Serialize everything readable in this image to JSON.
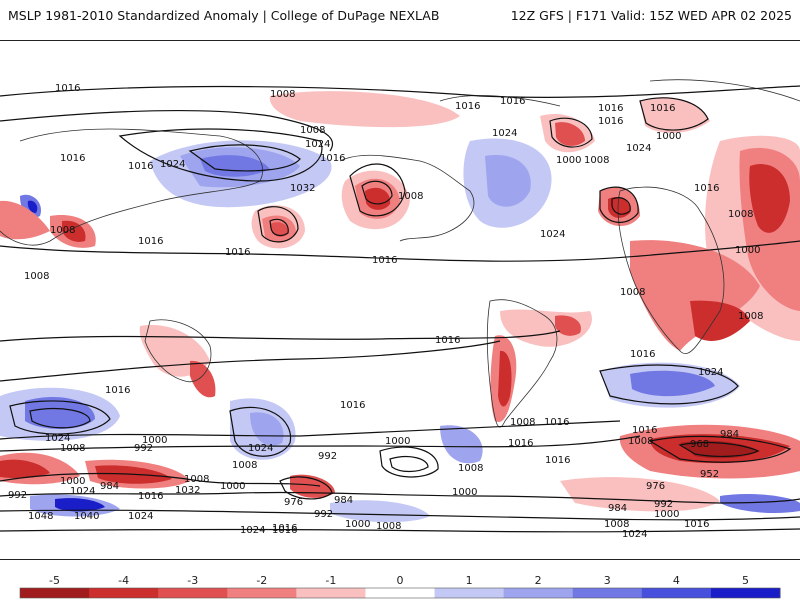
{
  "header": {
    "left_title": "MSLP 1981-2010 Standardized Anomaly | College of DuPage NEXLAB",
    "right_title": "12Z GFS | F171 Valid: 15Z WED APR 02 2025"
  },
  "colorbar": {
    "ticks": [
      "-5",
      "-4",
      "-3",
      "-2",
      "-1",
      "0",
      "1",
      "2",
      "3",
      "4",
      "5"
    ],
    "colors": [
      "#a11d1d",
      "#cc2e2e",
      "#e05050",
      "#f08080",
      "#fac0c0",
      "#ffffff",
      "#c4c8f4",
      "#9ea5ee",
      "#7178e4",
      "#4650dc",
      "#1a1ec8"
    ]
  },
  "isobar_labels": [
    "1016",
    "1008",
    "1016",
    "1016",
    "1024",
    "1016",
    "1032",
    "1016",
    "1016",
    "1008",
    "1016",
    "1008",
    "1016",
    "1024",
    "1016",
    "1008",
    "1024",
    "1000",
    "1008",
    "1016",
    "1016",
    "1000",
    "1008",
    "1024",
    "1016",
    "1024",
    "1016",
    "1016",
    "1008",
    "1016",
    "1008",
    "1016",
    "1000",
    "1008",
    "1000",
    "1024",
    "1008",
    "1024",
    "1016",
    "1008",
    "1016",
    "1016",
    "1024",
    "1000",
    "992",
    "1016",
    "1008",
    "1016",
    "1000",
    "1008",
    "1008",
    "992",
    "1024",
    "1008",
    "992",
    "1040",
    "1000",
    "1048",
    "984",
    "1016",
    "1000",
    "1032",
    "1024",
    "976",
    "984",
    "992",
    "1008",
    "1016",
    "968",
    "984",
    "952",
    "976",
    "992",
    "984",
    "1000",
    "1008",
    "1016",
    "1024",
    "1024",
    "1016",
    "1000"
  ]
}
